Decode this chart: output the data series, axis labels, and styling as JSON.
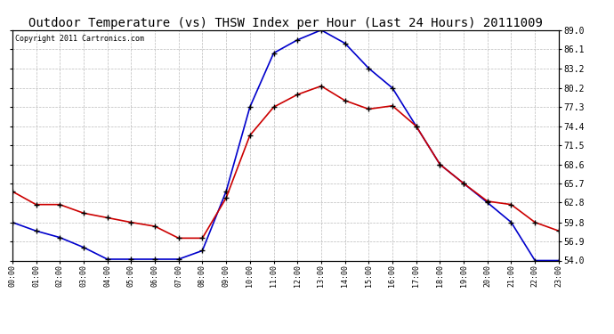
{
  "title": "Outdoor Temperature (vs) THSW Index per Hour (Last 24 Hours) 20111009",
  "copyright": "Copyright 2011 Cartronics.com",
  "hours": [
    0,
    1,
    2,
    3,
    4,
    5,
    6,
    7,
    8,
    9,
    10,
    11,
    12,
    13,
    14,
    15,
    16,
    17,
    18,
    19,
    20,
    21,
    22,
    23
  ],
  "hour_labels": [
    "00:00",
    "01:00",
    "02:00",
    "03:00",
    "04:00",
    "05:00",
    "06:00",
    "07:00",
    "08:00",
    "09:00",
    "10:00",
    "11:00",
    "12:00",
    "13:00",
    "14:00",
    "15:00",
    "16:00",
    "17:00",
    "18:00",
    "19:00",
    "20:00",
    "21:00",
    "22:00",
    "23:00"
  ],
  "temp_red": [
    64.5,
    62.5,
    62.5,
    61.2,
    60.5,
    59.8,
    59.2,
    57.4,
    57.4,
    63.5,
    73.0,
    77.3,
    79.2,
    80.5,
    78.3,
    77.0,
    77.5,
    74.4,
    68.6,
    65.7,
    63.0,
    62.5,
    59.8,
    58.5
  ],
  "thsw_blue": [
    59.8,
    58.5,
    57.5,
    56.0,
    54.2,
    54.2,
    54.2,
    54.2,
    55.5,
    64.5,
    77.3,
    85.5,
    87.5,
    89.0,
    87.0,
    83.2,
    80.2,
    74.4,
    68.6,
    65.7,
    62.8,
    59.8,
    54.0,
    54.0
  ],
  "ylim_min": 54.0,
  "ylim_max": 89.0,
  "yticks": [
    54.0,
    56.9,
    59.8,
    62.8,
    65.7,
    68.6,
    71.5,
    74.4,
    77.3,
    80.2,
    83.2,
    86.1,
    89.0
  ],
  "bg_color": "#ffffff",
  "plot_bg_color": "#ffffff",
  "grid_color": "#bbbbbb",
  "red_color": "#cc0000",
  "blue_color": "#0000cc",
  "marker_color": "#000000",
  "title_fontsize": 10,
  "copyright_fontsize": 6,
  "linewidth": 1.2,
  "markersize": 4
}
